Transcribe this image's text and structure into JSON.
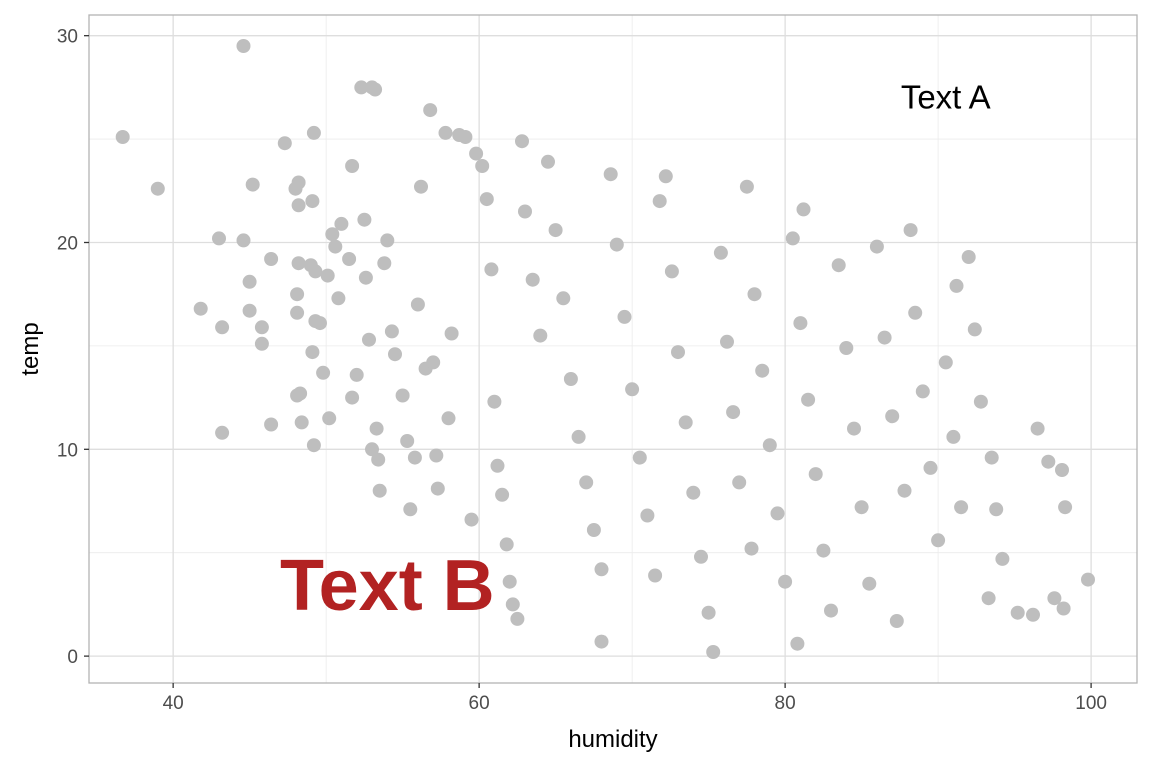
{
  "chart_data": {
    "type": "scatter",
    "xlabel": "humidity",
    "ylabel": "temp",
    "xlim": [
      34.5,
      103
    ],
    "ylim": [
      -1.3,
      31
    ],
    "x_ticks": [
      40,
      60,
      80,
      100
    ],
    "y_ticks": [
      0,
      10,
      20,
      30
    ],
    "grid": true,
    "point_color": "#bebebe",
    "annotations": [
      {
        "label": "Text A",
        "x": 90.5,
        "y": 27.0,
        "color": "#000000"
      },
      {
        "label": "Text B",
        "x": 54.0,
        "y": 3.4,
        "color": "#b22222"
      }
    ],
    "points_shown": [
      [
        36.7,
        25.1
      ],
      [
        39.0,
        22.6
      ],
      [
        44.6,
        29.5
      ],
      [
        41.8,
        16.8
      ],
      [
        43.0,
        20.2
      ],
      [
        43.2,
        15.9
      ],
      [
        43.2,
        10.8
      ],
      [
        44.6,
        20.1
      ],
      [
        45.0,
        18.1
      ],
      [
        45.0,
        16.7
      ],
      [
        45.2,
        22.8
      ],
      [
        45.8,
        15.9
      ],
      [
        45.8,
        15.1
      ],
      [
        46.4,
        19.2
      ],
      [
        46.4,
        11.2
      ],
      [
        47.3,
        24.8
      ],
      [
        48.0,
        22.6
      ],
      [
        48.2,
        22.9
      ],
      [
        48.2,
        21.8
      ],
      [
        48.2,
        19.0
      ],
      [
        48.1,
        17.5
      ],
      [
        48.1,
        16.6
      ],
      [
        48.1,
        12.6
      ],
      [
        48.3,
        12.7
      ],
      [
        48.4,
        11.3
      ],
      [
        49.2,
        25.3
      ],
      [
        49.1,
        22.0
      ],
      [
        49.0,
        18.9
      ],
      [
        49.3,
        18.6
      ],
      [
        49.3,
        16.2
      ],
      [
        49.1,
        14.7
      ],
      [
        49.2,
        10.2
      ],
      [
        49.6,
        16.1
      ],
      [
        49.8,
        13.7
      ],
      [
        50.1,
        18.4
      ],
      [
        50.2,
        11.5
      ],
      [
        50.4,
        20.4
      ],
      [
        50.6,
        19.8
      ],
      [
        50.8,
        17.3
      ],
      [
        51.0,
        20.9
      ],
      [
        51.5,
        19.2
      ],
      [
        51.7,
        23.7
      ],
      [
        51.7,
        12.5
      ],
      [
        52.0,
        13.6
      ],
      [
        52.3,
        27.5
      ],
      [
        52.5,
        21.1
      ],
      [
        52.6,
        18.3
      ],
      [
        52.8,
        15.3
      ],
      [
        53.0,
        27.5
      ],
      [
        53.2,
        27.4
      ],
      [
        53.0,
        10.0
      ],
      [
        53.3,
        11.0
      ],
      [
        53.4,
        9.5
      ],
      [
        53.5,
        8.0
      ],
      [
        53.8,
        19.0
      ],
      [
        54.0,
        20.1
      ],
      [
        54.3,
        15.7
      ],
      [
        54.5,
        14.6
      ],
      [
        55.0,
        12.6
      ],
      [
        55.3,
        10.4
      ],
      [
        55.5,
        7.1
      ],
      [
        55.8,
        9.6
      ],
      [
        56.0,
        17.0
      ],
      [
        56.2,
        22.7
      ],
      [
        56.5,
        13.9
      ],
      [
        56.8,
        26.4
      ],
      [
        57.0,
        14.2
      ],
      [
        57.2,
        9.7
      ],
      [
        57.3,
        8.1
      ],
      [
        57.8,
        25.3
      ],
      [
        58.0,
        11.5
      ],
      [
        58.2,
        15.6
      ],
      [
        58.7,
        25.2
      ],
      [
        59.1,
        25.1
      ],
      [
        59.5,
        6.6
      ],
      [
        59.8,
        24.3
      ],
      [
        60.2,
        23.7
      ],
      [
        60.5,
        22.1
      ],
      [
        60.8,
        18.7
      ],
      [
        61.0,
        12.3
      ],
      [
        61.2,
        9.2
      ],
      [
        61.5,
        7.8
      ],
      [
        61.8,
        5.4
      ],
      [
        62.0,
        3.6
      ],
      [
        62.2,
        2.5
      ],
      [
        62.5,
        1.8
      ],
      [
        62.8,
        24.9
      ],
      [
        63.0,
        21.5
      ],
      [
        63.5,
        18.2
      ],
      [
        64.0,
        15.5
      ],
      [
        64.5,
        23.9
      ],
      [
        65.0,
        20.6
      ],
      [
        65.5,
        17.3
      ],
      [
        66.0,
        13.4
      ],
      [
        66.5,
        10.6
      ],
      [
        67.0,
        8.4
      ],
      [
        67.5,
        6.1
      ],
      [
        68.0,
        4.2
      ],
      [
        68.0,
        0.7
      ],
      [
        68.6,
        23.3
      ],
      [
        69.0,
        19.9
      ],
      [
        69.5,
        16.4
      ],
      [
        70.0,
        12.9
      ],
      [
        70.5,
        9.6
      ],
      [
        71.0,
        6.8
      ],
      [
        71.5,
        3.9
      ],
      [
        71.8,
        22.0
      ],
      [
        72.2,
        23.2
      ],
      [
        72.6,
        18.6
      ],
      [
        73.0,
        14.7
      ],
      [
        73.5,
        11.3
      ],
      [
        74.0,
        7.9
      ],
      [
        74.5,
        4.8
      ],
      [
        75.0,
        2.1
      ],
      [
        75.3,
        0.2
      ],
      [
        75.8,
        19.5
      ],
      [
        76.2,
        15.2
      ],
      [
        76.6,
        11.8
      ],
      [
        77.0,
        8.4
      ],
      [
        77.5,
        22.7
      ],
      [
        77.8,
        5.2
      ],
      [
        78.0,
        17.5
      ],
      [
        78.5,
        13.8
      ],
      [
        79.0,
        10.2
      ],
      [
        79.5,
        6.9
      ],
      [
        80.0,
        3.6
      ],
      [
        80.5,
        20.2
      ],
      [
        80.8,
        0.6
      ],
      [
        81.0,
        16.1
      ],
      [
        81.2,
        21.6
      ],
      [
        81.5,
        12.4
      ],
      [
        82.0,
        8.8
      ],
      [
        82.5,
        5.1
      ],
      [
        83.0,
        2.2
      ],
      [
        83.5,
        18.9
      ],
      [
        84.0,
        14.9
      ],
      [
        84.5,
        11.0
      ],
      [
        85.0,
        7.2
      ],
      [
        85.5,
        3.5
      ],
      [
        86.0,
        19.8
      ],
      [
        86.5,
        15.4
      ],
      [
        87.0,
        11.6
      ],
      [
        87.3,
        1.7
      ],
      [
        87.8,
        8.0
      ],
      [
        88.2,
        20.6
      ],
      [
        88.5,
        16.6
      ],
      [
        89.0,
        12.8
      ],
      [
        89.5,
        9.1
      ],
      [
        90.0,
        5.6
      ],
      [
        90.5,
        14.2
      ],
      [
        91.0,
        10.6
      ],
      [
        91.2,
        17.9
      ],
      [
        91.5,
        7.2
      ],
      [
        92.0,
        19.3
      ],
      [
        92.4,
        15.8
      ],
      [
        92.8,
        12.3
      ],
      [
        93.3,
        2.8
      ],
      [
        93.5,
        9.6
      ],
      [
        93.8,
        7.1
      ],
      [
        94.2,
        4.7
      ],
      [
        95.2,
        2.1
      ],
      [
        96.2,
        2.0
      ],
      [
        96.5,
        11.0
      ],
      [
        97.2,
        9.4
      ],
      [
        97.6,
        2.8
      ],
      [
        98.1,
        9.0
      ],
      [
        98.3,
        7.2
      ],
      [
        98.2,
        2.3
      ],
      [
        99.8,
        3.7
      ]
    ]
  }
}
